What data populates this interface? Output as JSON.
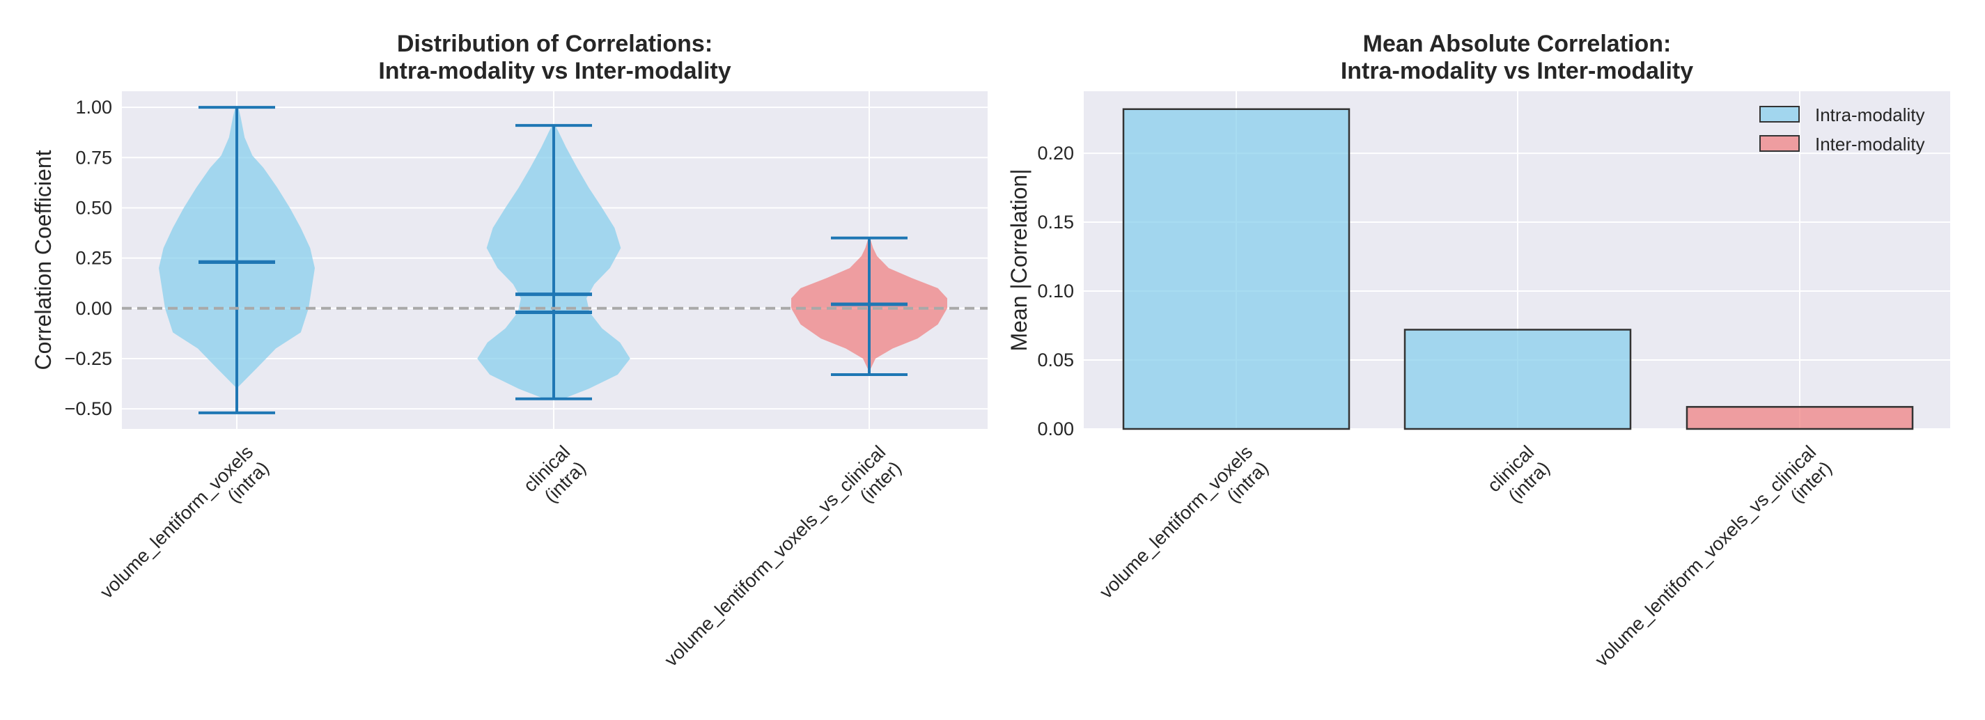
{
  "chart_data": [
    {
      "type": "violin",
      "title_lines": [
        "Distribution of Correlations:",
        "Intra-modality vs Inter-modality"
      ],
      "ylabel": "Correlation Coefficient",
      "ylim": [
        -0.6,
        1.08
      ],
      "yticks": [
        1.0,
        0.75,
        0.5,
        0.25,
        0.0,
        -0.25,
        -0.5
      ],
      "ytick_labels": [
        "1.00",
        "0.75",
        "0.50",
        "0.25",
        "0.00",
        "−0.25",
        "−0.50"
      ],
      "reference_line": 0,
      "categories": [
        {
          "label_lines": [
            "volume_lentiform_voxels",
            "(intra)"
          ],
          "modality": "intra",
          "min": -0.52,
          "max": 1.0,
          "mean": 0.23,
          "median": 0.23,
          "density": [
            [
              -0.39,
              0.02
            ],
            [
              -0.3,
              0.25
            ],
            [
              -0.2,
              0.5
            ],
            [
              -0.12,
              0.82
            ],
            [
              0.0,
              0.92
            ],
            [
              0.1,
              0.96
            ],
            [
              0.2,
              1.0
            ],
            [
              0.3,
              0.94
            ],
            [
              0.4,
              0.82
            ],
            [
              0.5,
              0.68
            ],
            [
              0.6,
              0.52
            ],
            [
              0.7,
              0.34
            ],
            [
              0.76,
              0.2
            ],
            [
              0.85,
              0.1
            ],
            [
              0.95,
              0.05
            ],
            [
              1.0,
              0.02
            ]
          ]
        },
        {
          "label_lines": [
            "clinical",
            "(intra)"
          ],
          "modality": "intra",
          "min": -0.45,
          "max": 0.91,
          "mean": 0.07,
          "median": -0.02,
          "density": [
            [
              -0.45,
              0.12
            ],
            [
              -0.4,
              0.45
            ],
            [
              -0.33,
              0.82
            ],
            [
              -0.25,
              0.98
            ],
            [
              -0.17,
              0.85
            ],
            [
              -0.1,
              0.62
            ],
            [
              -0.02,
              0.46
            ],
            [
              0.05,
              0.42
            ],
            [
              0.12,
              0.52
            ],
            [
              0.2,
              0.72
            ],
            [
              0.3,
              0.86
            ],
            [
              0.4,
              0.78
            ],
            [
              0.5,
              0.62
            ],
            [
              0.6,
              0.45
            ],
            [
              0.7,
              0.3
            ],
            [
              0.8,
              0.16
            ],
            [
              0.88,
              0.06
            ],
            [
              0.91,
              0.02
            ]
          ]
        },
        {
          "label_lines": [
            "volume_lentiform_voxels_vs_clinical",
            "(inter)"
          ],
          "modality": "inter",
          "min": -0.33,
          "max": 0.35,
          "mean": 0.02,
          "median": 0.02,
          "density": [
            [
              -0.3,
              0.02
            ],
            [
              -0.25,
              0.08
            ],
            [
              -0.2,
              0.3
            ],
            [
              -0.15,
              0.62
            ],
            [
              -0.08,
              0.88
            ],
            [
              0.0,
              1.0
            ],
            [
              0.05,
              1.0
            ],
            [
              0.1,
              0.88
            ],
            [
              0.15,
              0.55
            ],
            [
              0.2,
              0.25
            ],
            [
              0.26,
              0.1
            ],
            [
              0.3,
              0.05
            ],
            [
              0.35,
              0.01
            ]
          ]
        }
      ],
      "colors": {
        "intra": "#87ceeb",
        "inter": "#f08080",
        "lines": "#1f77b4"
      }
    },
    {
      "type": "bar",
      "title_lines": [
        "Mean Absolute Correlation:",
        "Intra-modality vs Inter-modality"
      ],
      "ylabel": "Mean |Correlation|",
      "ylim": [
        0,
        0.245
      ],
      "yticks": [
        0.0,
        0.05,
        0.1,
        0.15,
        0.2
      ],
      "ytick_labels": [
        "0.00",
        "0.05",
        "0.10",
        "0.15",
        "0.20"
      ],
      "categories": [
        {
          "label_lines": [
            "volume_lentiform_voxels",
            "(intra)"
          ],
          "modality": "intra"
        },
        {
          "label_lines": [
            "clinical",
            "(intra)"
          ],
          "modality": "intra"
        },
        {
          "label_lines": [
            "volume_lentiform_voxels_vs_clinical",
            "(inter)"
          ],
          "modality": "inter"
        }
      ],
      "values": [
        0.232,
        0.072,
        0.016
      ],
      "legend": {
        "position": "top-right",
        "items": [
          {
            "label": "Intra-modality",
            "modality": "intra"
          },
          {
            "label": "Inter-modality",
            "modality": "inter"
          }
        ]
      },
      "colors": {
        "intra": "#87ceeb",
        "inter": "#f08080",
        "edge": "#333333"
      }
    }
  ]
}
